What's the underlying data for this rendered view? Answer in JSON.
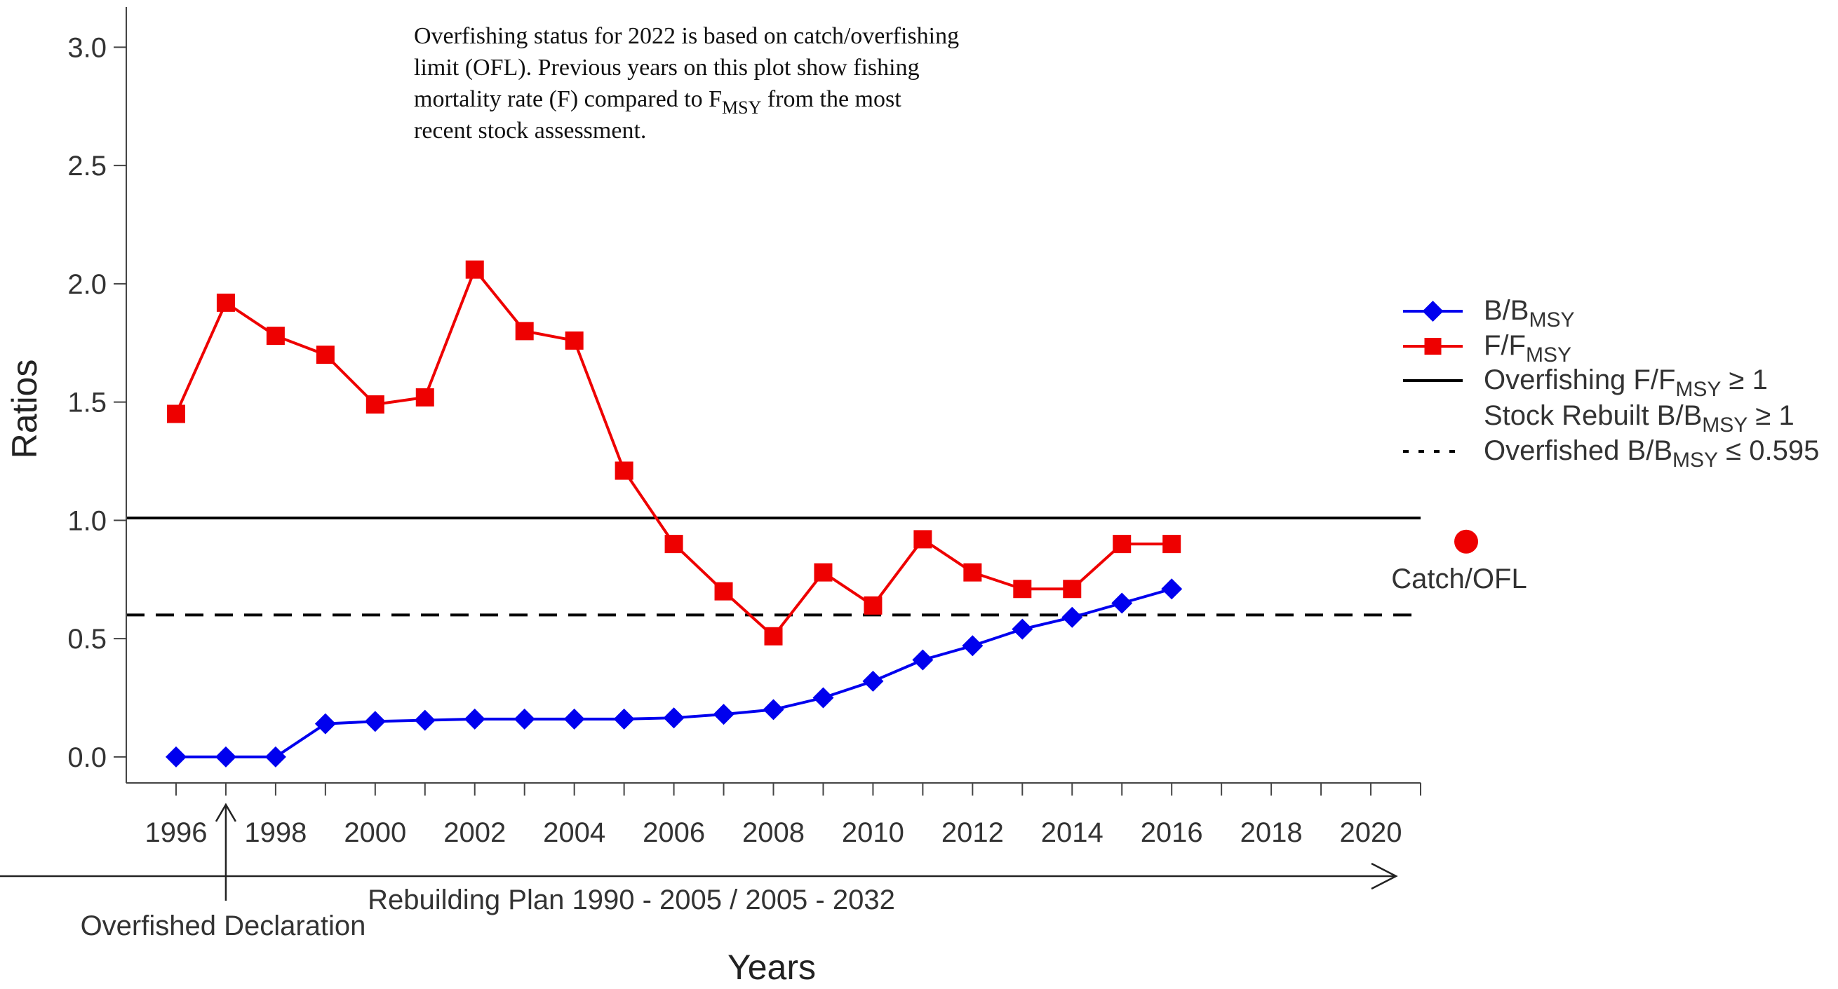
{
  "chart_data": {
    "type": "line",
    "xlabel": "Years",
    "ylabel": "Ratios",
    "xlim": [
      1995,
      2021
    ],
    "ylim": [
      -0.11,
      3.17
    ],
    "x_ticks": [
      1996,
      1997,
      1998,
      1999,
      2000,
      2001,
      2002,
      2003,
      2004,
      2005,
      2006,
      2007,
      2008,
      2009,
      2010,
      2011,
      2012,
      2013,
      2014,
      2015,
      2016,
      2017,
      2018,
      2019,
      2020,
      2021
    ],
    "x_tick_labels": [
      "1996",
      "1998",
      "2000",
      "2002",
      "2004",
      "2006",
      "2008",
      "2010",
      "2012",
      "2014",
      "2016",
      "2018",
      "2020"
    ],
    "x_tick_label_years": [
      1996,
      1998,
      2000,
      2002,
      2004,
      2006,
      2008,
      2010,
      2012,
      2014,
      2016,
      2018,
      2020
    ],
    "y_ticks": [
      0.0,
      0.5,
      1.0,
      1.5,
      2.0,
      2.5,
      3.0
    ],
    "y_tick_labels": [
      "0.0",
      "0.5",
      "1.0",
      "1.5",
      "2.0",
      "2.5",
      "3.0"
    ],
    "x": [
      1996,
      1997,
      1998,
      1999,
      2000,
      2001,
      2002,
      2003,
      2004,
      2005,
      2006,
      2007,
      2008,
      2009,
      2010,
      2011,
      2012,
      2013,
      2014,
      2015,
      2016
    ],
    "series": [
      {
        "key": "b_bmsy",
        "marker": "diamond",
        "color": "#0000ee",
        "values": [
          0.0,
          0.0,
          0.0,
          0.14,
          0.15,
          0.155,
          0.16,
          0.16,
          0.16,
          0.16,
          0.165,
          0.18,
          0.2,
          0.25,
          0.32,
          0.41,
          0.47,
          0.54,
          0.59,
          0.65,
          0.71
        ]
      },
      {
        "key": "f_fmsy",
        "marker": "square",
        "color": "#ee0000",
        "values": [
          1.45,
          1.92,
          1.78,
          1.7,
          1.49,
          1.52,
          2.06,
          1.8,
          1.76,
          1.21,
          0.9,
          0.7,
          0.51,
          0.78,
          0.64,
          0.92,
          0.78,
          0.71,
          0.71,
          0.9,
          0.9
        ]
      }
    ],
    "reference_lines": [
      {
        "key": "overfishing",
        "y": 1.01,
        "style": "solid",
        "color": "#000000"
      },
      {
        "key": "overfished",
        "y": 0.6,
        "style": "dashed",
        "color": "#000000"
      }
    ],
    "catch_ofl": {
      "value": 0.91,
      "color": "#ee0000",
      "label": "Catch/OFL"
    },
    "legend": {
      "placement": "right",
      "entries": [
        {
          "key": "b_bmsy",
          "pre": "B/B",
          "sub": "MSY",
          "post": ""
        },
        {
          "key": "f_fmsy",
          "pre": "F/F",
          "sub": "MSY",
          "post": ""
        },
        {
          "key": "overfishing",
          "pre": "Overfishing F/F",
          "sub": "MSY",
          "post": " ≥ 1"
        },
        {
          "key": "rebuilt",
          "pre": "Stock Rebuilt B/B",
          "sub": "MSY",
          "post": " ≥ 1"
        },
        {
          "key": "overfished",
          "pre": "Overfished B/B",
          "sub": "MSY",
          "post": " ≤ 0.595"
        }
      ]
    },
    "note_lines": [
      {
        "pre": "Overfishing status for 2022 is based on catch/overfishing",
        "sub": "",
        "post": ""
      },
      {
        "pre": "limit (OFL). Previous years on this plot show fishing",
        "sub": "",
        "post": ""
      },
      {
        "pre": "mortality rate (F) compared to F",
        "sub": "MSY",
        "post": " from the most"
      },
      {
        "pre": "recent stock assessment.",
        "sub": "",
        "post": ""
      }
    ],
    "annotations": {
      "overfished_declaration": {
        "year": 1997,
        "label": "Overfished Declaration"
      },
      "rebuilding_plan": {
        "label": "Rebuilding Plan 1990 - 2005 / 2005 - 2032"
      }
    }
  }
}
